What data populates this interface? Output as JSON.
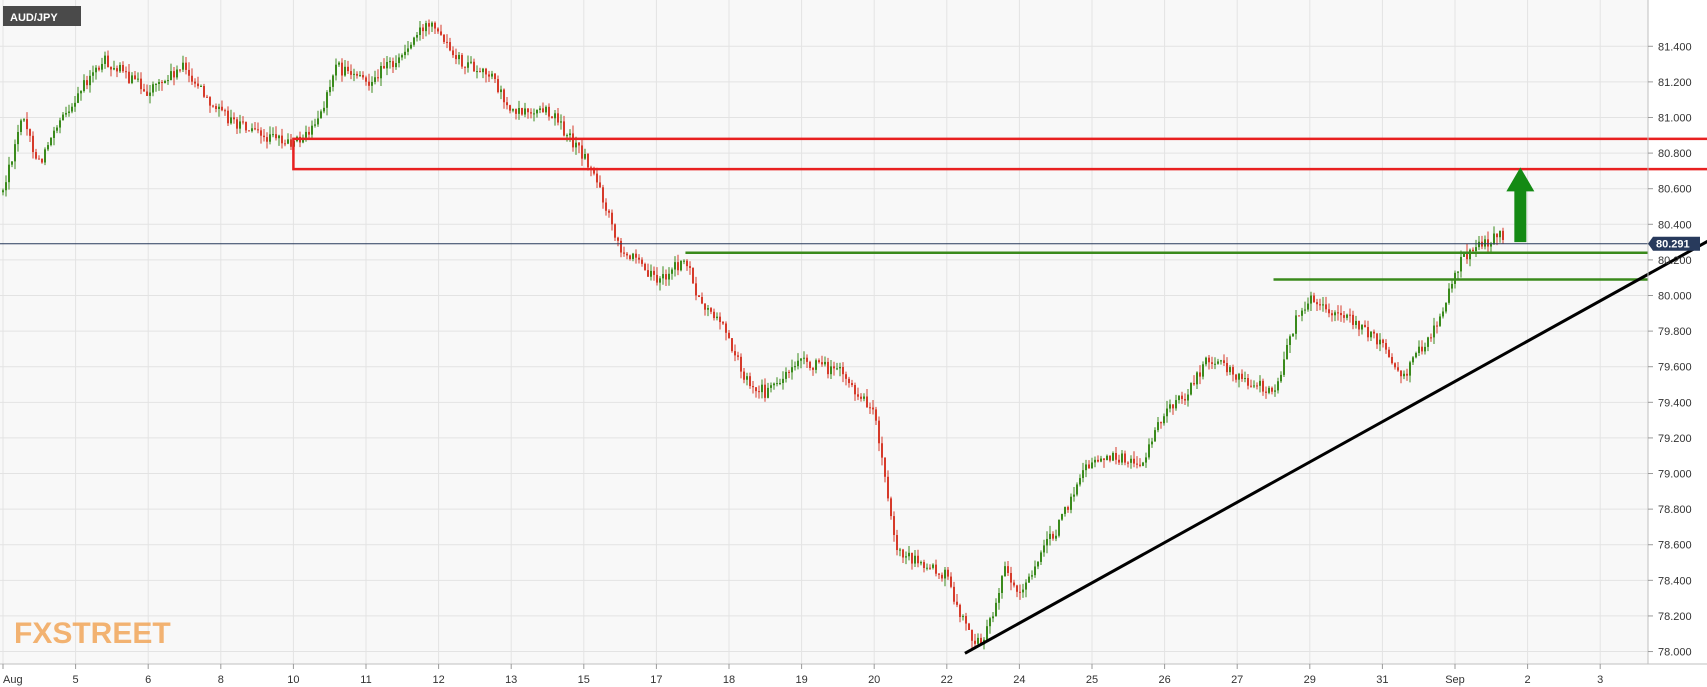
{
  "chart_data": {
    "type": "candlestick",
    "symbol": "AUD/JPY",
    "last_price": 80.291,
    "last_price_label": "80.291",
    "ylim": [
      77.93,
      81.66
    ],
    "y_ticks": [
      {
        "value": 81.4,
        "label": "81.400"
      },
      {
        "value": 81.2,
        "label": "81.200"
      },
      {
        "value": 81.0,
        "label": "81.000"
      },
      {
        "value": 80.8,
        "label": "80.800"
      },
      {
        "value": 80.6,
        "label": "80.600"
      },
      {
        "value": 80.4,
        "label": "80.400"
      },
      {
        "value": 80.2,
        "label": "80.200"
      },
      {
        "value": 80.0,
        "label": "80.000"
      },
      {
        "value": 79.8,
        "label": "79.800"
      },
      {
        "value": 79.6,
        "label": "79.600"
      },
      {
        "value": 79.4,
        "label": "79.400"
      },
      {
        "value": 79.2,
        "label": "79.200"
      },
      {
        "value": 79.0,
        "label": "79.000"
      },
      {
        "value": 78.8,
        "label": "78.800"
      },
      {
        "value": 78.6,
        "label": "78.600"
      },
      {
        "value": 78.4,
        "label": "78.400"
      },
      {
        "value": 78.2,
        "label": "78.200"
      },
      {
        "value": 78.0,
        "label": "78.000"
      }
    ],
    "x_ticks": [
      "Aug",
      "5",
      "6",
      "8",
      "10",
      "11",
      "12",
      "13",
      "15",
      "17",
      "18",
      "19",
      "20",
      "22",
      "24",
      "25",
      "26",
      "27",
      "29",
      "31",
      "Sep",
      "2",
      "3"
    ],
    "path_keypoints": [
      {
        "t": 0,
        "v": 80.58
      },
      {
        "t": 0.25,
        "v": 81.0
      },
      {
        "t": 0.5,
        "v": 80.75
      },
      {
        "t": 1,
        "v": 81.12
      },
      {
        "t": 1.4,
        "v": 81.32
      },
      {
        "t": 2,
        "v": 81.15
      },
      {
        "t": 2.5,
        "v": 81.28
      },
      {
        "t": 3,
        "v": 81.02
      },
      {
        "t": 3.5,
        "v": 80.9
      },
      {
        "t": 4,
        "v": 80.85
      },
      {
        "t": 4.3,
        "v": 80.95
      },
      {
        "t": 4.6,
        "v": 81.28
      },
      {
        "t": 5,
        "v": 81.2
      },
      {
        "t": 5.5,
        "v": 81.35
      },
      {
        "t": 5.9,
        "v": 81.56
      },
      {
        "t": 6.3,
        "v": 81.32
      },
      {
        "t": 6.7,
        "v": 81.25
      },
      {
        "t": 7,
        "v": 81.02
      },
      {
        "t": 7.5,
        "v": 81.05
      },
      {
        "t": 8,
        "v": 80.78
      },
      {
        "t": 8.2,
        "v": 80.62
      },
      {
        "t": 8.5,
        "v": 80.28
      },
      {
        "t": 8.8,
        "v": 80.15
      },
      {
        "t": 9,
        "v": 80.08
      },
      {
        "t": 9.4,
        "v": 80.2
      },
      {
        "t": 9.6,
        "v": 79.95
      },
      {
        "t": 9.9,
        "v": 79.85
      },
      {
        "t": 10.2,
        "v": 79.55
      },
      {
        "t": 10.5,
        "v": 79.45
      },
      {
        "t": 11,
        "v": 79.62
      },
      {
        "t": 11.5,
        "v": 79.58
      },
      {
        "t": 12,
        "v": 79.35
      },
      {
        "t": 12.3,
        "v": 78.55
      },
      {
        "t": 12.6,
        "v": 78.5
      },
      {
        "t": 13,
        "v": 78.42
      },
      {
        "t": 13.3,
        "v": 78.1
      },
      {
        "t": 13.5,
        "v": 78.05
      },
      {
        "t": 13.8,
        "v": 78.45
      },
      {
        "t": 14,
        "v": 78.3
      },
      {
        "t": 14.2,
        "v": 78.48
      },
      {
        "t": 14.6,
        "v": 78.75
      },
      {
        "t": 14.9,
        "v": 79.05
      },
      {
        "t": 15.3,
        "v": 79.1
      },
      {
        "t": 15.7,
        "v": 79.05
      },
      {
        "t": 16,
        "v": 79.35
      },
      {
        "t": 16.3,
        "v": 79.45
      },
      {
        "t": 16.6,
        "v": 79.65
      },
      {
        "t": 17,
        "v": 79.55
      },
      {
        "t": 17.5,
        "v": 79.45
      },
      {
        "t": 17.8,
        "v": 79.85
      },
      {
        "t": 18,
        "v": 80.0
      },
      {
        "t": 18.3,
        "v": 79.92
      },
      {
        "t": 18.6,
        "v": 79.85
      },
      {
        "t": 19,
        "v": 79.72
      },
      {
        "t": 19.3,
        "v": 79.55
      },
      {
        "t": 19.6,
        "v": 79.75
      },
      {
        "t": 19.8,
        "v": 79.88
      },
      {
        "t": 20.1,
        "v": 80.22
      },
      {
        "t": 20.4,
        "v": 80.3
      },
      {
        "t": 20.7,
        "v": 80.34
      }
    ],
    "overlays": {
      "resistance_zone": {
        "x_from": 4.0,
        "x_to": 25.0,
        "y_top": 80.88,
        "y_bottom": 80.71,
        "color": "#e82020"
      },
      "support_levels": [
        {
          "value": 80.24,
          "x_from": 9.4,
          "color": "#3a8a1c"
        },
        {
          "value": 80.09,
          "x_from": 17.5,
          "color": "#3a8a1c"
        }
      ],
      "trendline": {
        "x1": 13.25,
        "y1": 77.99,
        "x2": 25.05,
        "y2": 80.66,
        "color": "#000000"
      },
      "arrow": {
        "x": 20.9,
        "y_from": 80.3,
        "y_to": 80.72,
        "color": "#148a14"
      }
    },
    "colors": {
      "up": "#3a8a1c",
      "down": "#d63a2a",
      "grid": "#e3e3e3",
      "price_tag": "#283a5c",
      "symbol_tag": "#4a4a4a"
    }
  },
  "branding": {
    "logo_text": "FXSTREET"
  }
}
